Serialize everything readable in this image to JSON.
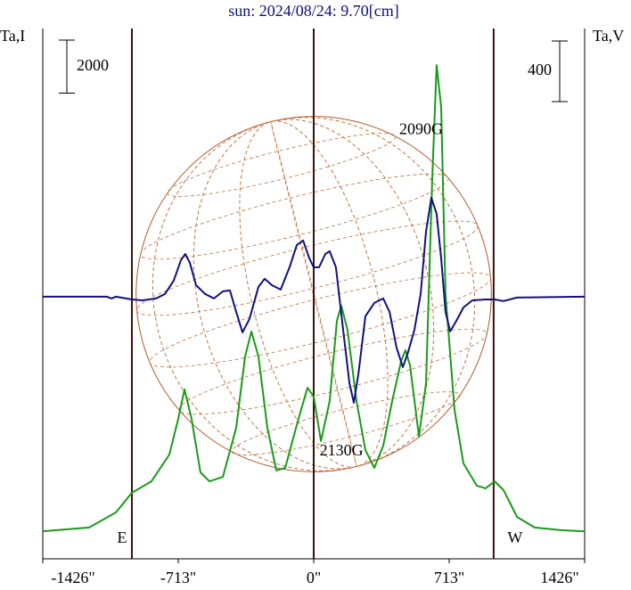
{
  "chart_data": {
    "type": "line",
    "title": "sun: 2024/08/24: 9.70[cm]",
    "y_label": "Ta,I",
    "y2_label": "Ta,V",
    "xlim": [
      -1426,
      1426
    ],
    "xticks": [
      {
        "value": -1426,
        "label": "-1426\""
      },
      {
        "value": -713,
        "label": "-713\""
      },
      {
        "value": 0,
        "label": "0\""
      },
      {
        "value": 713,
        "label": "713\""
      },
      {
        "value": 1426,
        "label": "1426\""
      }
    ],
    "ylim": [
      0,
      20000
    ],
    "y2lim": [
      -1730,
      1770
    ],
    "y_scale_bar": 2000,
    "y2_scale_bar": 400,
    "vlines": [
      -957,
      0,
      947
    ],
    "limb_labels": [
      "E",
      "W"
    ],
    "disk_radius": 935,
    "annotations": [
      {
        "text": "2090G",
        "x": 619,
        "y": 1250,
        "axis": "y2"
      },
      {
        "text": "2130G",
        "x": 200,
        "y": -870,
        "axis": "y2"
      }
    ],
    "series": [
      {
        "color": "#1a9a1a",
        "axis": "y",
        "x": [
          -1426,
          -1182,
          -1041,
          -957,
          -854,
          -760,
          -713,
          -680,
          -643,
          -596,
          -549,
          -478,
          -408,
          -361,
          -328,
          -291,
          -244,
          -197,
          -150,
          -80,
          -33,
          0,
          38,
          84,
          122,
          145,
          178,
          225,
          272,
          319,
          366,
          413,
          460,
          483,
          507,
          554,
          591,
          624,
          647,
          671,
          694,
          741,
          788,
          858,
          905,
          952,
          999,
          1070,
          1163,
          1304,
          1426
        ],
        "values": [
          1040,
          1180,
          1750,
          2490,
          2920,
          3930,
          5280,
          6390,
          5280,
          3260,
          2920,
          3090,
          4940,
          7630,
          8570,
          7630,
          4940,
          3330,
          3430,
          5280,
          6450,
          6120,
          4440,
          5950,
          8970,
          9550,
          8640,
          5950,
          4100,
          3430,
          4270,
          5950,
          7460,
          7870,
          7290,
          4610,
          6620,
          14350,
          18620,
          17040,
          9980,
          5610,
          3600,
          2760,
          2660,
          2920,
          2590,
          1580,
          1180,
          1080,
          1040
        ]
      },
      {
        "color": "#101080",
        "axis": "y2",
        "x": [
          -1426,
          -1088,
          -1065,
          -1041,
          -957,
          -901,
          -830,
          -783,
          -737,
          -699,
          -676,
          -652,
          -619,
          -572,
          -525,
          -478,
          -441,
          -408,
          -375,
          -338,
          -291,
          -258,
          -220,
          -174,
          -127,
          -89,
          -56,
          -23,
          0,
          28,
          61,
          84,
          117,
          155,
          188,
          211,
          235,
          272,
          319,
          366,
          399,
          436,
          469,
          497,
          530,
          563,
          591,
          619,
          647,
          671,
          694,
          718,
          751,
          788,
          835,
          905,
          952,
          999,
          1070,
          1426
        ],
        "values": [
          0,
          0,
          -12,
          0,
          -18,
          -24,
          -12,
          18,
          106,
          241,
          282,
          224,
          76,
          18,
          -12,
          35,
          41,
          -100,
          -235,
          -147,
          65,
          118,
          76,
          47,
          194,
          341,
          371,
          253,
          194,
          194,
          282,
          300,
          194,
          -218,
          -571,
          -700,
          -512,
          -129,
          -41,
          -12,
          -100,
          -335,
          -465,
          -365,
          -218,
          18,
          429,
          653,
          547,
          253,
          -100,
          -229,
          -159,
          -71,
          -24,
          -18,
          -18,
          -29,
          -6,
          0
        ]
      }
    ]
  }
}
